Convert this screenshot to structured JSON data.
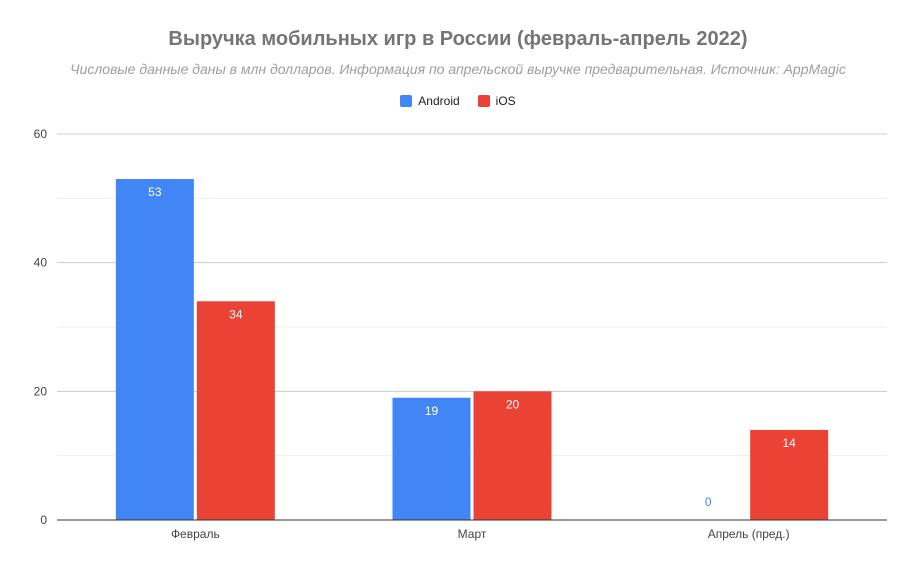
{
  "chart_data": {
    "type": "bar",
    "title": "Выручка мобильных игр в России (февраль-апрель 2022)",
    "subtitle": "Числовые данные даны в млн долларов. Информация по апрельской выручке предварительная. Источник: AppMagic",
    "categories": [
      "Февраль",
      "Март",
      "Апрель (пред.)"
    ],
    "series": [
      {
        "name": "Android",
        "color": "#4285f4",
        "values": [
          53,
          19,
          0
        ]
      },
      {
        "name": "iOS",
        "color": "#ea4335",
        "values": [
          34,
          20,
          14
        ]
      }
    ],
    "ylim": [
      0,
      60
    ],
    "yticks": [
      0,
      20,
      40,
      60
    ],
    "grid": true,
    "legend_position": "top"
  }
}
